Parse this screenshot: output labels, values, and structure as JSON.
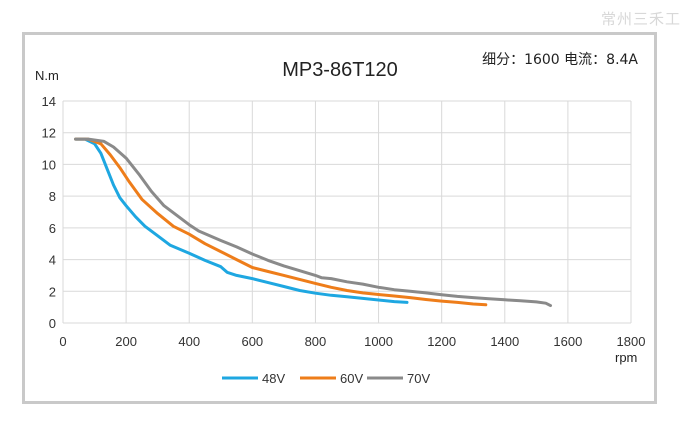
{
  "watermark": "常州三禾工",
  "chart_data": {
    "type": "line",
    "title": "MP3-86T120",
    "subtitle": "细分：1600 电流：8.4A",
    "xlabel": "rpm",
    "ylabel": "N.m",
    "xlim": [
      0,
      1800
    ],
    "ylim": [
      0,
      14
    ],
    "xticks": [
      0,
      200,
      400,
      600,
      800,
      1000,
      1200,
      1400,
      1600,
      1800
    ],
    "yticks": [
      0,
      2,
      4,
      6,
      8,
      10,
      12,
      14
    ],
    "grid": true,
    "legend_position": "bottom",
    "series": [
      {
        "name": "48V",
        "color": "#1ea7e1",
        "points": [
          [
            40,
            11.6
          ],
          [
            70,
            11.6
          ],
          [
            100,
            11.3
          ],
          [
            120,
            10.7
          ],
          [
            140,
            9.7
          ],
          [
            160,
            8.7
          ],
          [
            180,
            7.9
          ],
          [
            200,
            7.4
          ],
          [
            230,
            6.7
          ],
          [
            260,
            6.1
          ],
          [
            300,
            5.5
          ],
          [
            340,
            4.9
          ],
          [
            400,
            4.4
          ],
          [
            450,
            3.95
          ],
          [
            500,
            3.55
          ],
          [
            520,
            3.2
          ],
          [
            550,
            3.0
          ],
          [
            600,
            2.8
          ],
          [
            650,
            2.55
          ],
          [
            700,
            2.3
          ],
          [
            750,
            2.05
          ],
          [
            800,
            1.88
          ],
          [
            850,
            1.75
          ],
          [
            900,
            1.65
          ],
          [
            950,
            1.55
          ],
          [
            1000,
            1.45
          ],
          [
            1050,
            1.35
          ],
          [
            1090,
            1.3
          ]
        ]
      },
      {
        "name": "60V",
        "color": "#ee7d1a",
        "points": [
          [
            40,
            11.6
          ],
          [
            80,
            11.6
          ],
          [
            120,
            11.3
          ],
          [
            150,
            10.6
          ],
          [
            180,
            9.8
          ],
          [
            210,
            8.9
          ],
          [
            250,
            7.8
          ],
          [
            300,
            6.9
          ],
          [
            350,
            6.1
          ],
          [
            400,
            5.6
          ],
          [
            450,
            5.0
          ],
          [
            500,
            4.5
          ],
          [
            550,
            4.0
          ],
          [
            600,
            3.5
          ],
          [
            650,
            3.25
          ],
          [
            700,
            3.0
          ],
          [
            750,
            2.75
          ],
          [
            800,
            2.5
          ],
          [
            850,
            2.25
          ],
          [
            900,
            2.05
          ],
          [
            950,
            1.9
          ],
          [
            1000,
            1.8
          ],
          [
            1050,
            1.7
          ],
          [
            1100,
            1.6
          ],
          [
            1150,
            1.48
          ],
          [
            1200,
            1.38
          ],
          [
            1250,
            1.3
          ],
          [
            1300,
            1.2
          ],
          [
            1340,
            1.15
          ]
        ]
      },
      {
        "name": "70V",
        "color": "#8a8a8a",
        "points": [
          [
            40,
            11.6
          ],
          [
            80,
            11.6
          ],
          [
            130,
            11.45
          ],
          [
            160,
            11.1
          ],
          [
            200,
            10.4
          ],
          [
            240,
            9.4
          ],
          [
            280,
            8.3
          ],
          [
            320,
            7.4
          ],
          [
            360,
            6.8
          ],
          [
            400,
            6.2
          ],
          [
            430,
            5.8
          ],
          [
            500,
            5.2
          ],
          [
            550,
            4.8
          ],
          [
            600,
            4.35
          ],
          [
            650,
            3.95
          ],
          [
            700,
            3.6
          ],
          [
            750,
            3.3
          ],
          [
            800,
            3.0
          ],
          [
            820,
            2.85
          ],
          [
            850,
            2.8
          ],
          [
            900,
            2.6
          ],
          [
            950,
            2.45
          ],
          [
            1000,
            2.25
          ],
          [
            1050,
            2.1
          ],
          [
            1100,
            2.0
          ],
          [
            1150,
            1.9
          ],
          [
            1200,
            1.78
          ],
          [
            1250,
            1.68
          ],
          [
            1300,
            1.6
          ],
          [
            1350,
            1.53
          ],
          [
            1400,
            1.46
          ],
          [
            1450,
            1.4
          ],
          [
            1500,
            1.33
          ],
          [
            1530,
            1.25
          ],
          [
            1545,
            1.1
          ]
        ]
      }
    ]
  }
}
